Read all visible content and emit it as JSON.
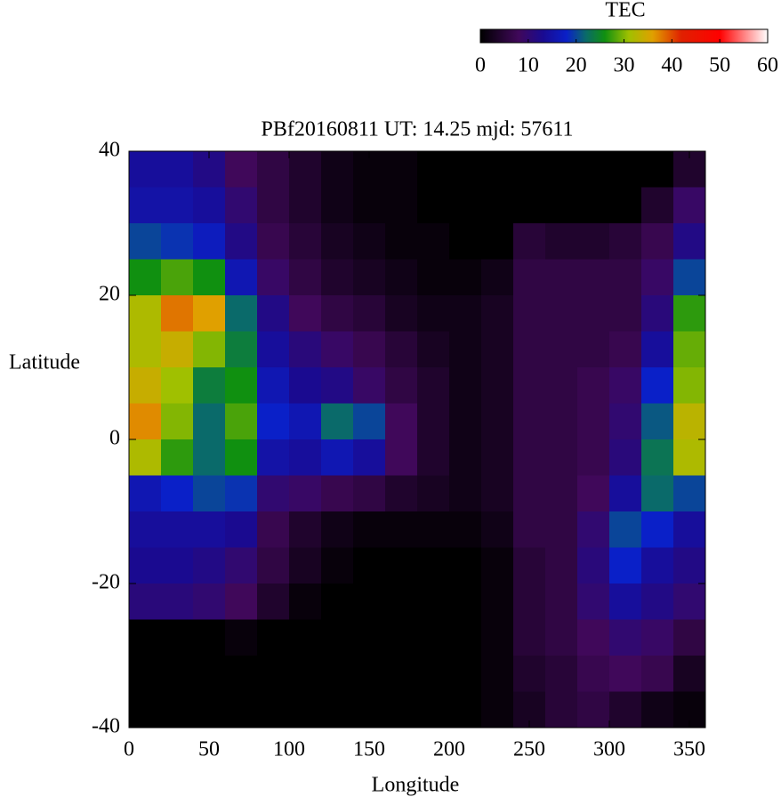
{
  "chart_data": {
    "type": "heatmap",
    "title": "PBf20160811  UT: 14.25  mjd: 57611",
    "xlabel": "Longitude",
    "ylabel": "Latitude",
    "colorbar_label": "TEC",
    "xlim": [
      0,
      360
    ],
    "ylim": [
      -40,
      40
    ],
    "xticks": [
      0,
      50,
      100,
      150,
      200,
      250,
      300,
      350
    ],
    "yticks": [
      -40,
      -20,
      0,
      20,
      40
    ],
    "cblim": [
      0,
      60
    ],
    "cbticks": [
      0,
      10,
      20,
      30,
      40,
      50,
      60
    ],
    "colormap": [
      [
        0,
        "#000000"
      ],
      [
        8,
        "#40085a"
      ],
      [
        13,
        "#1a0a90"
      ],
      [
        18,
        "#0a20c8"
      ],
      [
        22,
        "#0a6a6a"
      ],
      [
        26,
        "#109010"
      ],
      [
        31,
        "#a0c000"
      ],
      [
        36,
        "#e0a000"
      ],
      [
        42,
        "#e02000"
      ],
      [
        50,
        "#ff0000"
      ],
      [
        60,
        "#ffffff"
      ]
    ],
    "xbins": [
      0,
      20,
      40,
      60,
      80,
      100,
      120,
      140,
      160,
      180,
      200,
      220,
      240,
      260,
      280,
      300,
      320,
      340,
      360
    ],
    "ybins": [
      40,
      35,
      30,
      25,
      20,
      15,
      10,
      5,
      0,
      -5,
      -10,
      -15,
      -20,
      -25,
      -30,
      -35,
      -40
    ],
    "values": [
      [
        14,
        14,
        12,
        8,
        6,
        4,
        2,
        1,
        1,
        0,
        0,
        0,
        0,
        0,
        0,
        0,
        0,
        4
      ],
      [
        15,
        15,
        14,
        10,
        6,
        4,
        2,
        1,
        1,
        0,
        0,
        0,
        0,
        0,
        0,
        0,
        4,
        9
      ],
      [
        20,
        19,
        17,
        12,
        7,
        5,
        3,
        2,
        1,
        1,
        0,
        0,
        5,
        4,
        4,
        5,
        7,
        12
      ],
      [
        26,
        28,
        26,
        16,
        9,
        6,
        4,
        3,
        2,
        1,
        1,
        2,
        6,
        6,
        6,
        6,
        9,
        20
      ],
      [
        32,
        38,
        36,
        22,
        12,
        8,
        6,
        5,
        3,
        2,
        2,
        3,
        6,
        6,
        6,
        6,
        11,
        27
      ],
      [
        32,
        34,
        30,
        24,
        14,
        11,
        9,
        7,
        5,
        3,
        2,
        3,
        6,
        6,
        6,
        7,
        14,
        29
      ],
      [
        34,
        31,
        24,
        26,
        16,
        13,
        12,
        9,
        6,
        4,
        2,
        3,
        6,
        6,
        7,
        9,
        18,
        30
      ],
      [
        37,
        30,
        22,
        28,
        18,
        16,
        22,
        20,
        8,
        4,
        2,
        3,
        6,
        6,
        7,
        10,
        21,
        33
      ],
      [
        32,
        27,
        22,
        26,
        15,
        14,
        16,
        14,
        8,
        4,
        2,
        3,
        6,
        6,
        7,
        11,
        23,
        32
      ],
      [
        16,
        18,
        20,
        19,
        10,
        9,
        7,
        6,
        4,
        3,
        2,
        3,
        6,
        6,
        8,
        14,
        22,
        20
      ],
      [
        14,
        14,
        14,
        13,
        7,
        4,
        2,
        1,
        1,
        1,
        1,
        2,
        6,
        6,
        10,
        20,
        18,
        14
      ],
      [
        13,
        13,
        12,
        10,
        6,
        3,
        1,
        0,
        0,
        0,
        0,
        1,
        5,
        6,
        11,
        18,
        14,
        12
      ],
      [
        11,
        11,
        10,
        8,
        4,
        1,
        0,
        0,
        0,
        0,
        0,
        1,
        5,
        6,
        10,
        14,
        12,
        10
      ],
      [
        0,
        0,
        0,
        1,
        0,
        0,
        0,
        0,
        0,
        0,
        0,
        1,
        5,
        6,
        8,
        10,
        9,
        6
      ],
      [
        0,
        0,
        0,
        0,
        0,
        0,
        0,
        0,
        0,
        0,
        0,
        1,
        4,
        5,
        7,
        8,
        7,
        3
      ],
      [
        0,
        0,
        0,
        0,
        0,
        0,
        0,
        0,
        0,
        0,
        0,
        1,
        3,
        5,
        6,
        4,
        2,
        1
      ]
    ]
  }
}
